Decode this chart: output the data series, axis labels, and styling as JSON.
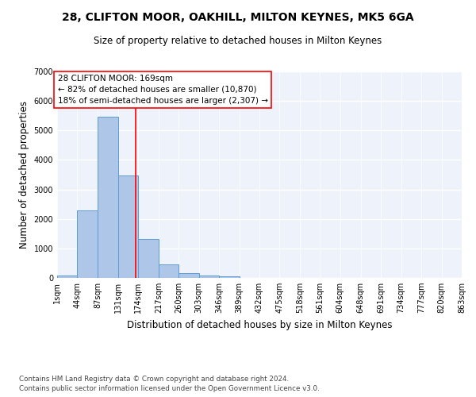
{
  "title": "28, CLIFTON MOOR, OAKHILL, MILTON KEYNES, MK5 6GA",
  "subtitle": "Size of property relative to detached houses in Milton Keynes",
  "xlabel": "Distribution of detached houses by size in Milton Keynes",
  "ylabel": "Number of detached properties",
  "footer_line1": "Contains HM Land Registry data © Crown copyright and database right 2024.",
  "footer_line2": "Contains public sector information licensed under the Open Government Licence v3.0.",
  "bin_labels": [
    "1sqm",
    "44sqm",
    "87sqm",
    "131sqm",
    "174sqm",
    "217sqm",
    "260sqm",
    "303sqm",
    "346sqm",
    "389sqm",
    "432sqm",
    "475sqm",
    "518sqm",
    "561sqm",
    "604sqm",
    "648sqm",
    "691sqm",
    "734sqm",
    "777sqm",
    "820sqm",
    "863sqm"
  ],
  "bar_values": [
    75,
    2280,
    5470,
    3460,
    1320,
    460,
    160,
    90,
    55,
    0,
    0,
    0,
    0,
    0,
    0,
    0,
    0,
    0,
    0,
    0
  ],
  "bar_color": "#aec6e8",
  "bar_edge_color": "#5b9bd5",
  "background_color": "#eef3fb",
  "grid_color": "#ffffff",
  "annotation_line1": "28 CLIFTON MOOR: 169sqm",
  "annotation_line2": "← 82% of detached houses are smaller (10,870)",
  "annotation_line3": "18% of semi-detached houses are larger (2,307) →",
  "ylim": [
    0,
    7000
  ],
  "yticks": [
    0,
    1000,
    2000,
    3000,
    4000,
    5000,
    6000,
    7000
  ],
  "bin_edges": [
    1,
    44,
    87,
    131,
    174,
    217,
    260,
    303,
    346,
    389,
    432,
    475,
    518,
    561,
    604,
    648,
    691,
    734,
    777,
    820,
    863
  ],
  "red_line_x": 169,
  "title_fontsize": 10,
  "subtitle_fontsize": 8.5,
  "axis_label_fontsize": 8.5,
  "tick_fontsize": 7
}
